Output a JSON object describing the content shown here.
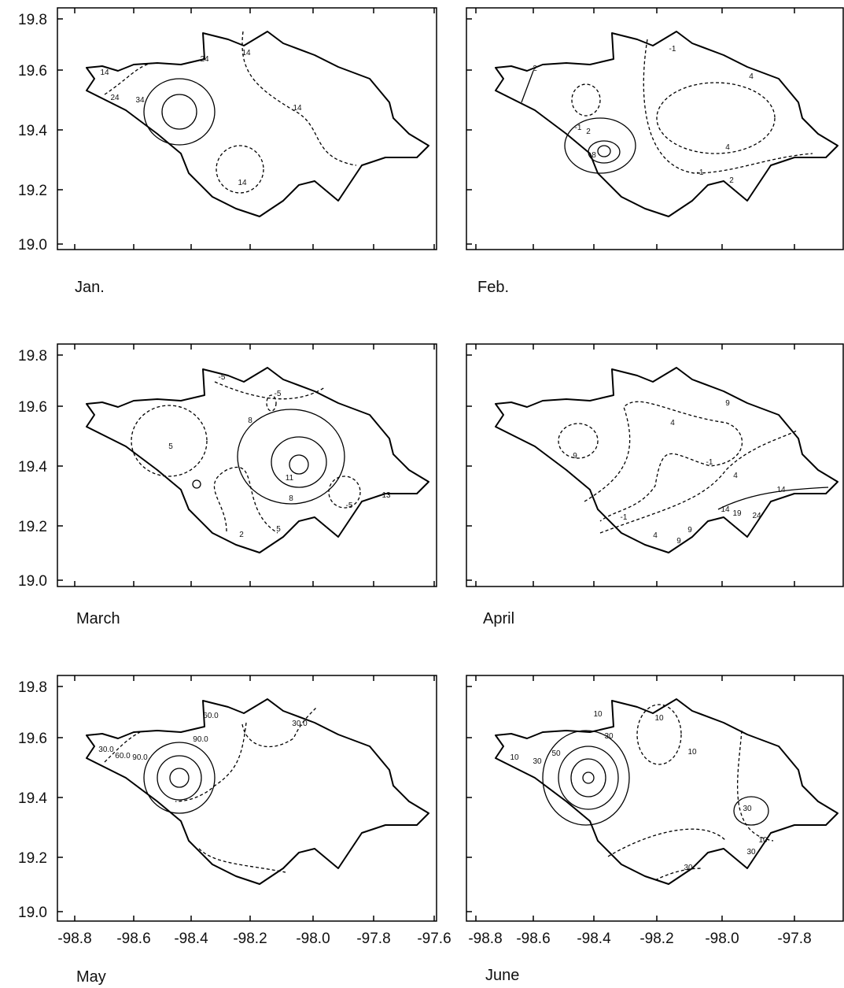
{
  "panels": [
    {
      "label": "Jan.",
      "contour_labels": [
        "14",
        "24",
        "34",
        "24",
        "14",
        "14",
        "14"
      ]
    },
    {
      "label": "Feb.",
      "contour_labels": [
        "2",
        "-1",
        "2",
        "8",
        "-1",
        "4",
        "4",
        "-1",
        "2"
      ]
    },
    {
      "label": "March",
      "contour_labels": [
        "-5",
        "-5",
        "8",
        "11",
        "8",
        "5",
        "-5",
        "2",
        "5",
        "13"
      ]
    },
    {
      "label": "April",
      "contour_labels": [
        "9",
        "4",
        "9",
        "4",
        "-1",
        "14",
        "14",
        "19",
        "24",
        "-1",
        "4",
        "9",
        "9"
      ]
    },
    {
      "label": "May",
      "contour_labels": [
        "30.0",
        "60.0",
        "90.0",
        "60.0",
        "90.0",
        "30.0"
      ]
    },
    {
      "label": "June",
      "contour_labels": [
        "10",
        "30",
        "50",
        "10",
        "30",
        "10",
        "10",
        "30",
        "10",
        "30",
        "30"
      ]
    }
  ],
  "y_tick_labels": [
    "19.8",
    "19.6",
    "19.4",
    "19.2",
    "19.0"
  ],
  "x_tick_labels_left": [
    "-98.8",
    "-98.6",
    "-98.4",
    "-98.2",
    "-98.0",
    "-97.8",
    "-97.6"
  ],
  "x_tick_labels_right": [
    "-98.8",
    "-98.6",
    "-98.4",
    "-98.2",
    "-98.0",
    "-97.8"
  ]
}
